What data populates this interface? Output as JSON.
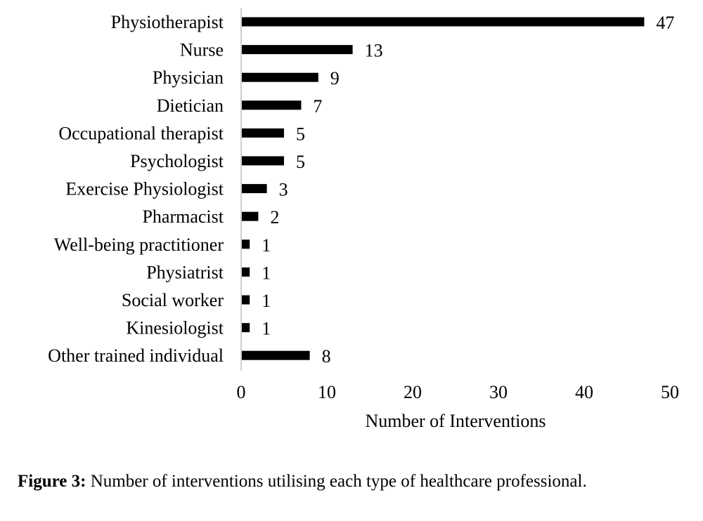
{
  "chart_data": {
    "type": "bar",
    "orientation": "horizontal",
    "categories": [
      "Physiotherapist",
      "Nurse",
      "Physician",
      "Dietician",
      "Occupational therapist",
      "Psychologist",
      "Exercise Physiologist",
      "Pharmacist",
      "Well-being practitioner",
      "Physiatrist",
      "Social worker",
      "Kinesiologist",
      "Other trained individual"
    ],
    "values": [
      47,
      13,
      9,
      7,
      5,
      5,
      3,
      2,
      1,
      1,
      1,
      1,
      8
    ],
    "data_labels": [
      "47",
      "13",
      "9",
      "7",
      "5",
      "5",
      "3",
      "2",
      "1",
      "1",
      "1",
      "1",
      "8"
    ],
    "xlabel": "Number of Interventions",
    "ylabel": "",
    "xlim": [
      0,
      50
    ],
    "xticks": [
      "0",
      "10",
      "20",
      "30",
      "40",
      "50"
    ],
    "grid": false,
    "bar_color": "#000000"
  },
  "caption": {
    "lead": "Figure 3:",
    "text": " Number of interventions utilising each type of healthcare professional."
  }
}
